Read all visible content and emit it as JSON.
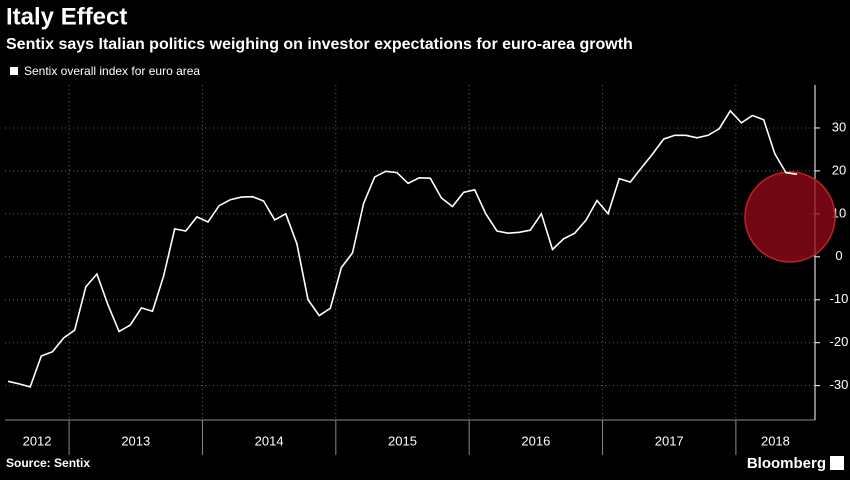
{
  "chart_data": {
    "type": "line",
    "title": "Italy Effect",
    "subtitle": "Sentix says Italian politics weighing on investor expectations for euro-area growth",
    "source": "Source: Sentix",
    "brand": "Bloomberg",
    "year_labels": [
      "2012",
      "2013",
      "2014",
      "2015",
      "2016",
      "2017",
      "2018"
    ],
    "series": [
      {
        "name": "Sentix overall index for euro area",
        "color": "#ffffff",
        "values": [
          -29,
          -29.6,
          -30.3,
          -23.1,
          -22.1,
          -18.9,
          -17.1,
          -7.0,
          -4.0,
          -11.2,
          -17.4,
          -15.9,
          -11.9,
          -12.7,
          -4.5,
          6.5,
          6.0,
          9.3,
          8.1,
          11.9,
          13.3,
          13.9,
          14.0,
          13.0,
          8.6,
          10.0,
          3.0,
          -10.0,
          -13.7,
          -12.0,
          -2.5,
          0.9,
          12.4,
          18.6,
          19.9,
          19.6,
          17.1,
          18.4,
          18.3,
          13.7,
          11.7,
          15.0,
          15.6,
          10.0,
          6.0,
          5.5,
          5.7,
          6.2,
          10.0,
          1.7,
          4.2,
          5.5,
          8.5,
          13.1,
          10.0,
          18.2,
          17.4,
          20.7,
          23.9,
          27.4,
          28.3,
          28.3,
          27.7,
          28.3,
          29.8,
          34.0,
          31.2,
          32.9,
          31.9,
          24.0,
          19.6,
          19.2
        ]
      }
    ],
    "ylim": [
      -38,
      40
    ],
    "yticks": [
      -30,
      -20,
      -10,
      0,
      10,
      20,
      30
    ],
    "grid": true
  }
}
